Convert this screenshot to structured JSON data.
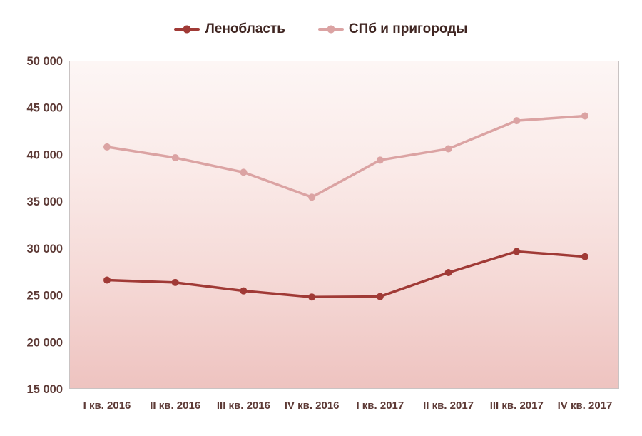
{
  "chart_data": {
    "type": "line",
    "title": "",
    "xlabel": "",
    "ylabel": "",
    "categories": [
      "I кв. 2016",
      "II кв. 2016",
      "III кв. 2016",
      "IV кв. 2016",
      "I кв. 2017",
      "II кв. 2017",
      "III кв. 2017",
      "IV кв. 2017"
    ],
    "series": [
      {
        "name": "Ленобласть",
        "color": "#a03a36",
        "marker": "circle",
        "values": [
          26600,
          26350,
          25450,
          24800,
          24850,
          27400,
          29650,
          29100
        ]
      },
      {
        "name": "СПб и пригороды",
        "color": "#dba3a3",
        "marker": "circle",
        "values": [
          40800,
          39650,
          38100,
          35450,
          39400,
          40600,
          43600,
          44100
        ]
      }
    ],
    "ylim": [
      15000,
      50000
    ],
    "ytick_step": 5000,
    "ytick_labels": [
      "15 000",
      "20 000",
      "25 000",
      "30 000",
      "35 000",
      "40 000",
      "45 000",
      "50 000"
    ],
    "grid": false,
    "legend_position": "top",
    "axis_label_color": "#5d3a36",
    "legend_text_color": "#402622",
    "plot_bg_gradient": [
      "#fdf6f5",
      "#faeae8",
      "#f5d9d6",
      "#eec3c0"
    ],
    "plot_border_color": "#c9c3c3"
  }
}
